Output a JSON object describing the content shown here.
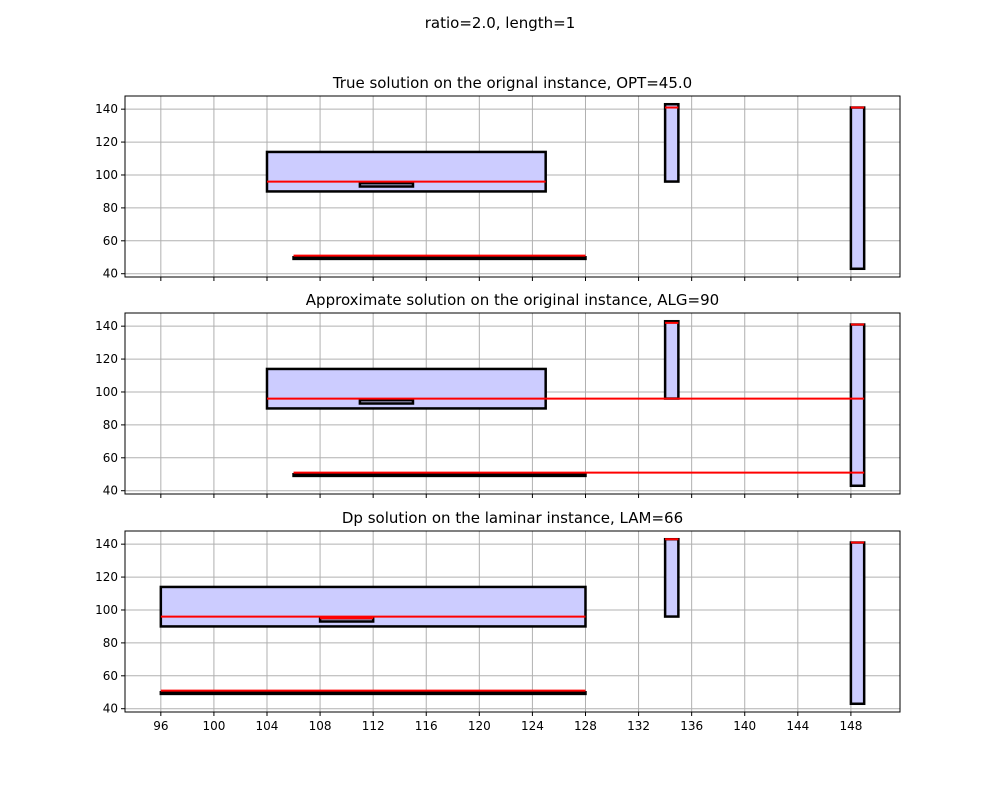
{
  "figure": {
    "suptitle": "ratio=2.0, length=1"
  },
  "chart_data": [
    {
      "type": "interval-rectangles",
      "title": "True solution on the orignal instance, OPT=45.0",
      "xlim": [
        93.3,
        151.7
      ],
      "ylim": [
        38,
        148
      ],
      "xticks": [
        96,
        100,
        104,
        108,
        112,
        116,
        120,
        124,
        128,
        132,
        136,
        140,
        144,
        148
      ],
      "yticks": [
        40,
        60,
        80,
        100,
        120,
        140
      ],
      "show_xticklabels": false,
      "grid": true,
      "rects": [
        {
          "x0": 104,
          "x1": 125,
          "y0": 90,
          "y1": 114
        },
        {
          "x0": 111,
          "x1": 115,
          "y0": 93,
          "y1": 95
        },
        {
          "x0": 106,
          "x1": 128,
          "y0": 49,
          "y1": 50
        },
        {
          "x0": 134,
          "x1": 135,
          "y0": 96,
          "y1": 143
        },
        {
          "x0": 148,
          "x1": 149,
          "y0": 43,
          "y1": 141
        }
      ],
      "red_lines": [
        {
          "x0": 104,
          "x1": 125,
          "y": 96
        },
        {
          "x0": 106,
          "x1": 128,
          "y": 51
        },
        {
          "x0": 134,
          "x1": 135,
          "y": 141
        },
        {
          "x0": 148,
          "x1": 149,
          "y": 141
        }
      ]
    },
    {
      "type": "interval-rectangles",
      "title": "Approximate solution on the original instance, ALG=90",
      "xlim": [
        93.3,
        151.7
      ],
      "ylim": [
        38,
        148
      ],
      "xticks": [
        96,
        100,
        104,
        108,
        112,
        116,
        120,
        124,
        128,
        132,
        136,
        140,
        144,
        148
      ],
      "yticks": [
        40,
        60,
        80,
        100,
        120,
        140
      ],
      "show_xticklabels": false,
      "grid": true,
      "rects": [
        {
          "x0": 104,
          "x1": 125,
          "y0": 90,
          "y1": 114
        },
        {
          "x0": 111,
          "x1": 115,
          "y0": 93,
          "y1": 95
        },
        {
          "x0": 106,
          "x1": 128,
          "y0": 49,
          "y1": 50
        },
        {
          "x0": 134,
          "x1": 135,
          "y0": 96,
          "y1": 143
        },
        {
          "x0": 148,
          "x1": 149,
          "y0": 43,
          "y1": 141
        }
      ],
      "red_lines": [
        {
          "x0": 104,
          "x1": 149,
          "y": 96
        },
        {
          "x0": 106,
          "x1": 149,
          "y": 51
        },
        {
          "x0": 134,
          "x1": 135,
          "y": 142
        },
        {
          "x0": 148,
          "x1": 149,
          "y": 141
        }
      ]
    },
    {
      "type": "interval-rectangles",
      "title": "Dp solution on the laminar instance, LAM=66",
      "xlim": [
        93.3,
        151.7
      ],
      "ylim": [
        38,
        148
      ],
      "xticks": [
        96,
        100,
        104,
        108,
        112,
        116,
        120,
        124,
        128,
        132,
        136,
        140,
        144,
        148
      ],
      "yticks": [
        40,
        60,
        80,
        100,
        120,
        140
      ],
      "show_xticklabels": true,
      "grid": true,
      "rects": [
        {
          "x0": 96,
          "x1": 128,
          "y0": 90,
          "y1": 114
        },
        {
          "x0": 108,
          "x1": 112,
          "y0": 93,
          "y1": 95
        },
        {
          "x0": 96,
          "x1": 128,
          "y0": 49,
          "y1": 50
        },
        {
          "x0": 134,
          "x1": 135,
          "y0": 96,
          "y1": 143
        },
        {
          "x0": 148,
          "x1": 149,
          "y0": 43,
          "y1": 141
        }
      ],
      "red_lines": [
        {
          "x0": 96,
          "x1": 128,
          "y": 96
        },
        {
          "x0": 108,
          "x1": 112,
          "y": 95
        },
        {
          "x0": 96,
          "x1": 128,
          "y": 51
        },
        {
          "x0": 134,
          "x1": 135,
          "y": 143
        },
        {
          "x0": 148,
          "x1": 149,
          "y": 141
        }
      ]
    }
  ]
}
